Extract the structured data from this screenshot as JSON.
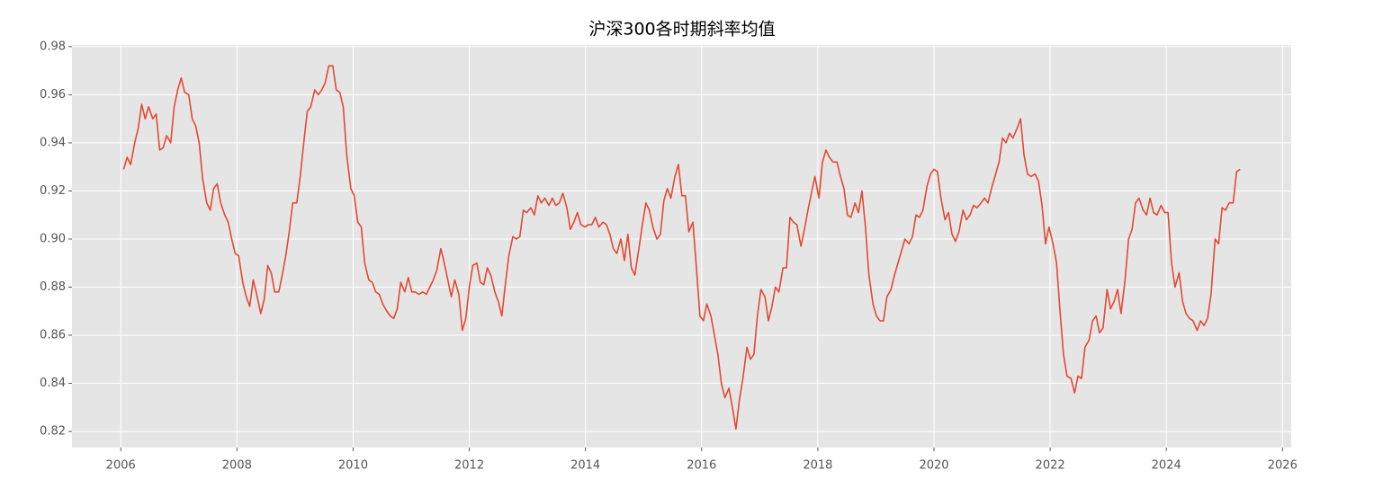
{
  "chart_data": {
    "type": "line",
    "title": "沪深300各时期斜率均值",
    "color": "#e24a33",
    "grid": true,
    "xlim": [
      2005.16,
      2026.15
    ],
    "xticks": [
      2006,
      2008,
      2010,
      2012,
      2014,
      2016,
      2018,
      2020,
      2022,
      2024,
      2026
    ],
    "ylim": [
      0.8133,
      0.9807
    ],
    "yticks": [
      0.82,
      0.84,
      0.86,
      0.88,
      {
        "value": 0.9,
        "label": "0.90"
      },
      0.92,
      0.94,
      0.96,
      0.98
    ],
    "x": [
      2006.05,
      2006.11,
      2006.17,
      2006.24,
      2006.3,
      2006.36,
      2006.42,
      2006.48,
      2006.55,
      2006.61,
      2006.67,
      2006.73,
      2006.79,
      2006.86,
      2006.92,
      2006.98,
      2007.04,
      2007.1,
      2007.17,
      2007.23,
      2007.29,
      2007.35,
      2007.41,
      2007.48,
      2007.54,
      2007.6,
      2007.66,
      2007.72,
      2007.79,
      2007.85,
      2007.91,
      2007.97,
      2008.03,
      2008.1,
      2008.16,
      2008.22,
      2008.28,
      2008.34,
      2008.41,
      2008.47,
      2008.53,
      2008.59,
      2008.65,
      2008.72,
      2008.78,
      2008.84,
      2008.9,
      2008.96,
      2009.03,
      2009.09,
      2009.15,
      2009.21,
      2009.27,
      2009.34,
      2009.4,
      2009.46,
      2009.52,
      2009.58,
      2009.65,
      2009.71,
      2009.77,
      2009.83,
      2009.89,
      2009.96,
      2010.02,
      2010.08,
      2010.14,
      2010.2,
      2010.27,
      2010.33,
      2010.39,
      2010.45,
      2010.51,
      2010.58,
      2010.64,
      2010.7,
      2010.76,
      2010.82,
      2010.89,
      2010.95,
      2011.01,
      2011.07,
      2011.13,
      2011.2,
      2011.26,
      2011.32,
      2011.38,
      2011.44,
      2011.51,
      2011.57,
      2011.63,
      2011.69,
      2011.75,
      2011.82,
      2011.88,
      2011.94,
      2012.0,
      2012.06,
      2012.13,
      2012.19,
      2012.25,
      2012.31,
      2012.37,
      2012.44,
      2012.5,
      2012.56,
      2012.62,
      2012.68,
      2012.75,
      2012.81,
      2012.87,
      2012.93,
      2012.99,
      2013.06,
      2013.12,
      2013.18,
      2013.24,
      2013.3,
      2013.37,
      2013.43,
      2013.49,
      2013.55,
      2013.61,
      2013.68,
      2013.74,
      2013.8,
      2013.86,
      2013.92,
      2013.99,
      2014.05,
      2014.11,
      2014.17,
      2014.23,
      2014.3,
      2014.36,
      2014.42,
      2014.48,
      2014.54,
      2014.61,
      2014.67,
      2014.73,
      2014.79,
      2014.85,
      2014.92,
      2014.98,
      2015.04,
      2015.1,
      2015.16,
      2015.23,
      2015.29,
      2015.35,
      2015.41,
      2015.47,
      2015.54,
      2015.6,
      2015.66,
      2015.72,
      2015.78,
      2015.85,
      2015.91,
      2015.97,
      2016.03,
      2016.09,
      2016.16,
      2016.22,
      2016.28,
      2016.34,
      2016.4,
      2016.47,
      2016.53,
      2016.59,
      2016.65,
      2016.71,
      2016.78,
      2016.84,
      2016.9,
      2016.96,
      2017.02,
      2017.09,
      2017.15,
      2017.21,
      2017.27,
      2017.33,
      2017.4,
      2017.46,
      2017.52,
      2017.58,
      2017.64,
      2017.71,
      2017.77,
      2017.83,
      2017.89,
      2017.95,
      2018.02,
      2018.08,
      2018.14,
      2018.2,
      2018.26,
      2018.33,
      2018.39,
      2018.45,
      2018.51,
      2018.57,
      2018.64,
      2018.7,
      2018.76,
      2018.82,
      2018.88,
      2018.95,
      2019.01,
      2019.07,
      2019.13,
      2019.19,
      2019.26,
      2019.32,
      2019.38,
      2019.44,
      2019.5,
      2019.57,
      2019.63,
      2019.69,
      2019.75,
      2019.81,
      2019.88,
      2019.94,
      2020.0,
      2020.06,
      2020.12,
      2020.19,
      2020.25,
      2020.31,
      2020.37,
      2020.43,
      2020.5,
      2020.56,
      2020.62,
      2020.68,
      2020.74,
      2020.81,
      2020.87,
      2020.93,
      2020.99,
      2021.05,
      2021.12,
      2021.18,
      2021.24,
      2021.3,
      2021.36,
      2021.43,
      2021.49,
      2021.55,
      2021.61,
      2021.67,
      2021.74,
      2021.8,
      2021.86,
      2021.92,
      2021.98,
      2022.05,
      2022.11,
      2022.17,
      2022.23,
      2022.29,
      2022.36,
      2022.42,
      2022.48,
      2022.54,
      2022.6,
      2022.67,
      2022.73,
      2022.79,
      2022.85,
      2022.91,
      2022.98,
      2023.04,
      2023.1,
      2023.16,
      2023.22,
      2023.29,
      2023.35,
      2023.41,
      2023.47,
      2023.53,
      2023.6,
      2023.66,
      2023.72,
      2023.78,
      2023.84,
      2023.91,
      2023.97,
      2024.03,
      2024.09,
      2024.15,
      2024.22,
      2024.28,
      2024.34,
      2024.4,
      2024.46,
      2024.53,
      2024.59,
      2024.65,
      2024.71,
      2024.77,
      2024.84,
      2024.9,
      2024.96,
      2025.02,
      2025.08,
      2025.15,
      2025.21,
      2025.27
    ],
    "values": [
      0.929,
      0.934,
      0.931,
      0.94,
      0.946,
      0.956,
      0.95,
      0.955,
      0.95,
      0.952,
      0.937,
      0.938,
      0.943,
      0.94,
      0.955,
      0.962,
      0.967,
      0.961,
      0.96,
      0.95,
      0.947,
      0.94,
      0.925,
      0.915,
      0.912,
      0.921,
      0.923,
      0.915,
      0.91,
      0.907,
      0.9,
      0.894,
      0.893,
      0.882,
      0.876,
      0.872,
      0.883,
      0.877,
      0.869,
      0.875,
      0.889,
      0.886,
      0.878,
      0.878,
      0.885,
      0.893,
      0.903,
      0.915,
      0.915,
      0.926,
      0.94,
      0.953,
      0.955,
      0.962,
      0.96,
      0.962,
      0.965,
      0.972,
      0.972,
      0.962,
      0.961,
      0.955,
      0.935,
      0.921,
      0.918,
      0.907,
      0.905,
      0.89,
      0.883,
      0.882,
      0.878,
      0.877,
      0.873,
      0.87,
      0.868,
      0.867,
      0.871,
      0.882,
      0.878,
      0.884,
      0.878,
      0.878,
      0.877,
      0.878,
      0.877,
      0.88,
      0.883,
      0.887,
      0.896,
      0.89,
      0.883,
      0.876,
      0.883,
      0.877,
      0.862,
      0.867,
      0.88,
      0.889,
      0.89,
      0.882,
      0.881,
      0.888,
      0.885,
      0.878,
      0.874,
      0.868,
      0.881,
      0.893,
      0.901,
      0.9,
      0.901,
      0.912,
      0.911,
      0.913,
      0.91,
      0.918,
      0.915,
      0.917,
      0.914,
      0.917,
      0.914,
      0.915,
      0.919,
      0.913,
      0.904,
      0.907,
      0.911,
      0.906,
      0.905,
      0.906,
      0.906,
      0.909,
      0.905,
      0.907,
      0.906,
      0.902,
      0.896,
      0.894,
      0.9,
      0.891,
      0.902,
      0.888,
      0.885,
      0.896,
      0.906,
      0.915,
      0.912,
      0.905,
      0.9,
      0.902,
      0.916,
      0.921,
      0.917,
      0.926,
      0.931,
      0.918,
      0.918,
      0.903,
      0.907,
      0.888,
      0.868,
      0.866,
      0.873,
      0.868,
      0.86,
      0.852,
      0.84,
      0.834,
      0.838,
      0.83,
      0.821,
      0.833,
      0.842,
      0.855,
      0.85,
      0.852,
      0.868,
      0.879,
      0.876,
      0.866,
      0.872,
      0.88,
      0.878,
      0.888,
      0.888,
      0.909,
      0.907,
      0.906,
      0.897,
      0.904,
      0.912,
      0.919,
      0.926,
      0.917,
      0.932,
      0.937,
      0.934,
      0.932,
      0.932,
      0.926,
      0.921,
      0.91,
      0.909,
      0.915,
      0.911,
      0.92,
      0.905,
      0.885,
      0.873,
      0.868,
      0.866,
      0.866,
      0.876,
      0.879,
      0.885,
      0.89,
      0.895,
      0.9,
      0.898,
      0.901,
      0.91,
      0.909,
      0.912,
      0.922,
      0.927,
      0.929,
      0.928,
      0.917,
      0.908,
      0.911,
      0.902,
      0.899,
      0.903,
      0.912,
      0.908,
      0.91,
      0.914,
      0.913,
      0.915,
      0.917,
      0.915,
      0.921,
      0.926,
      0.932,
      0.942,
      0.94,
      0.944,
      0.942,
      0.946,
      0.95,
      0.935,
      0.927,
      0.926,
      0.927,
      0.924,
      0.914,
      0.898,
      0.905,
      0.898,
      0.89,
      0.87,
      0.852,
      0.843,
      0.842,
      0.836,
      0.843,
      0.842,
      0.855,
      0.858,
      0.866,
      0.868,
      0.861,
      0.863,
      0.879,
      0.871,
      0.874,
      0.879,
      0.869,
      0.883,
      0.9,
      0.904,
      0.915,
      0.917,
      0.912,
      0.91,
      0.917,
      0.911,
      0.91,
      0.914,
      0.911,
      0.911,
      0.89,
      0.88,
      0.886,
      0.874,
      0.869,
      0.867,
      0.866,
      0.862,
      0.866,
      0.864,
      0.867,
      0.877,
      0.9,
      0.898,
      0.913,
      0.912,
      0.915,
      0.915,
      0.928,
      0.929
    ]
  }
}
